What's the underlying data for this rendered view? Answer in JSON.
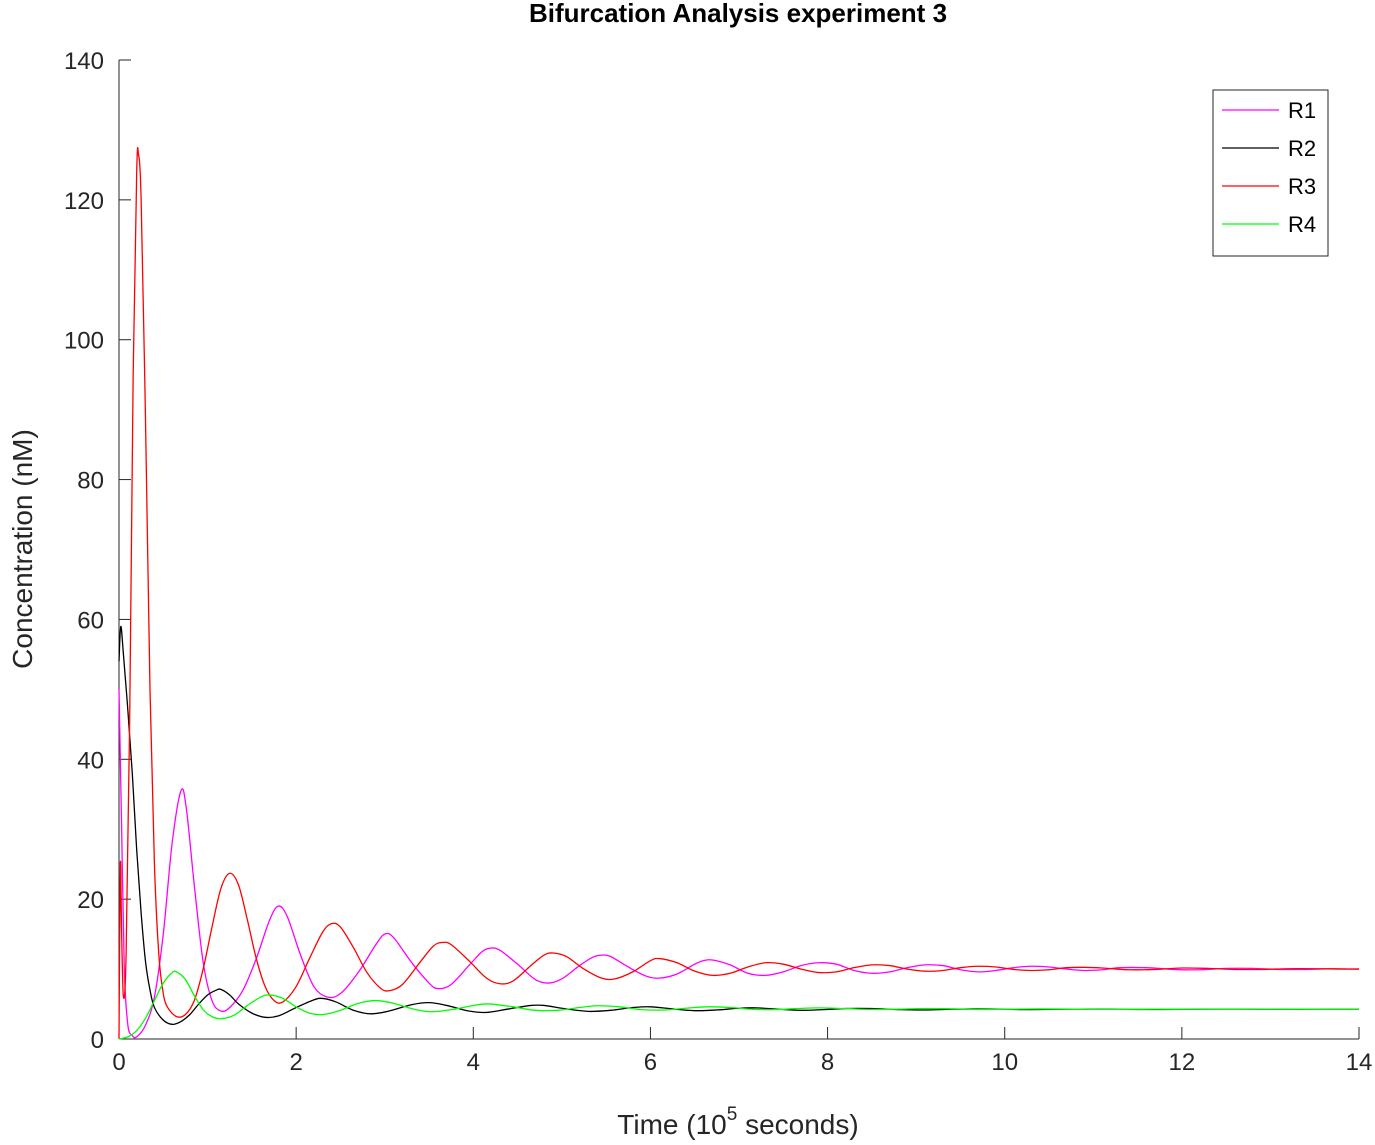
{
  "chart_data": {
    "type": "line",
    "title": "Bifurcation Analysis experiment 3",
    "xlabel": {
      "prefix": "Time (10",
      "exponent": "5",
      "suffix": " seconds)"
    },
    "ylabel": "Concentration (nM)",
    "xlim": [
      0,
      14
    ],
    "ylim": [
      0,
      140
    ],
    "xticks": [
      0,
      2,
      4,
      6,
      8,
      10,
      12,
      14
    ],
    "yticks": [
      0,
      20,
      40,
      60,
      80,
      100,
      120,
      140
    ],
    "xtick_labels": [
      "0",
      "2",
      "4",
      "6",
      "8",
      "10",
      "12",
      "14"
    ],
    "ytick_labels": [
      "0",
      "20",
      "40",
      "60",
      "80",
      "100",
      "120",
      "140"
    ],
    "legend_position": "top-right",
    "grid": false,
    "series": [
      {
        "name": "R1",
        "color": "#ff00ff",
        "points": [
          [
            0,
            50
          ],
          [
            0.03,
            30
          ],
          [
            0.06,
            10
          ],
          [
            0.1,
            2
          ],
          [
            0.15,
            0.5
          ],
          [
            0.2,
            0.3
          ],
          [
            0.3,
            2
          ],
          [
            0.4,
            6
          ],
          [
            0.5,
            15
          ],
          [
            0.6,
            28
          ],
          [
            0.7,
            35.5
          ],
          [
            0.76,
            33
          ],
          [
            0.85,
            22
          ],
          [
            0.95,
            11
          ],
          [
            1.05,
            5.5
          ],
          [
            1.15,
            4
          ],
          [
            1.25,
            4.5
          ],
          [
            1.4,
            7
          ],
          [
            1.55,
            11.5
          ],
          [
            1.7,
            17
          ],
          [
            1.8,
            19
          ],
          [
            1.9,
            17.5
          ],
          [
            2.05,
            12
          ],
          [
            2.2,
            7.5
          ],
          [
            2.35,
            6
          ],
          [
            2.5,
            6.5
          ],
          [
            2.7,
            9.5
          ],
          [
            2.9,
            13.5
          ],
          [
            3.0,
            15
          ],
          [
            3.1,
            14.5
          ],
          [
            3.3,
            11
          ],
          [
            3.5,
            8
          ],
          [
            3.6,
            7.2
          ],
          [
            3.75,
            7.8
          ],
          [
            3.95,
            10.5
          ],
          [
            4.1,
            12.5
          ],
          [
            4.2,
            13
          ],
          [
            4.3,
            12.7
          ],
          [
            4.5,
            10.7
          ],
          [
            4.7,
            8.5
          ],
          [
            4.85,
            8
          ],
          [
            5.0,
            8.6
          ],
          [
            5.2,
            10.5
          ],
          [
            5.35,
            11.7
          ],
          [
            5.45,
            12
          ],
          [
            5.55,
            11.8
          ],
          [
            5.75,
            10.3
          ],
          [
            5.95,
            9
          ],
          [
            6.1,
            8.7
          ],
          [
            6.3,
            9.3
          ],
          [
            6.5,
            10.7
          ],
          [
            6.6,
            11.2
          ],
          [
            6.7,
            11.3
          ],
          [
            6.9,
            10.6
          ],
          [
            7.1,
            9.4
          ],
          [
            7.3,
            9.1
          ],
          [
            7.5,
            9.6
          ],
          [
            7.7,
            10.5
          ],
          [
            7.9,
            10.9
          ],
          [
            8.1,
            10.7
          ],
          [
            8.3,
            9.8
          ],
          [
            8.5,
            9.4
          ],
          [
            8.7,
            9.6
          ],
          [
            8.9,
            10.2
          ],
          [
            9.1,
            10.6
          ],
          [
            9.3,
            10.5
          ],
          [
            9.5,
            9.9
          ],
          [
            9.7,
            9.6
          ],
          [
            9.9,
            9.8
          ],
          [
            10.1,
            10.2
          ],
          [
            10.3,
            10.4
          ],
          [
            10.5,
            10.3
          ],
          [
            10.7,
            10.0
          ],
          [
            10.9,
            9.8
          ],
          [
            11.1,
            9.9
          ],
          [
            11.3,
            10.2
          ],
          [
            11.6,
            10.2
          ],
          [
            11.9,
            9.95
          ],
          [
            12.2,
            9.9
          ],
          [
            12.5,
            10.1
          ],
          [
            12.8,
            10.1
          ],
          [
            13.1,
            9.95
          ],
          [
            13.4,
            9.95
          ],
          [
            13.7,
            10.05
          ],
          [
            14,
            10.0
          ]
        ]
      },
      {
        "name": "R2",
        "color": "#000000",
        "points": [
          [
            0,
            54
          ],
          [
            0.02,
            59
          ],
          [
            0.05,
            55
          ],
          [
            0.1,
            47
          ],
          [
            0.15,
            38
          ],
          [
            0.2,
            27
          ],
          [
            0.25,
            18
          ],
          [
            0.3,
            11
          ],
          [
            0.35,
            7
          ],
          [
            0.4,
            4.5
          ],
          [
            0.5,
            2.7
          ],
          [
            0.6,
            2.1
          ],
          [
            0.7,
            2.5
          ],
          [
            0.8,
            3.5
          ],
          [
            0.9,
            5
          ],
          [
            1.0,
            6.3
          ],
          [
            1.1,
            7
          ],
          [
            1.15,
            7.1
          ],
          [
            1.25,
            6.3
          ],
          [
            1.35,
            5
          ],
          [
            1.5,
            3.7
          ],
          [
            1.65,
            3.1
          ],
          [
            1.8,
            3.3
          ],
          [
            2.0,
            4.5
          ],
          [
            2.2,
            5.6
          ],
          [
            2.3,
            5.8
          ],
          [
            2.45,
            5.3
          ],
          [
            2.65,
            4.1
          ],
          [
            2.85,
            3.6
          ],
          [
            3.05,
            4.0
          ],
          [
            3.3,
            4.9
          ],
          [
            3.5,
            5.2
          ],
          [
            3.7,
            4.8
          ],
          [
            3.95,
            4.0
          ],
          [
            4.15,
            3.8
          ],
          [
            4.4,
            4.3
          ],
          [
            4.65,
            4.8
          ],
          [
            4.8,
            4.8
          ],
          [
            5.05,
            4.3
          ],
          [
            5.3,
            3.95
          ],
          [
            5.55,
            4.1
          ],
          [
            5.8,
            4.5
          ],
          [
            6.0,
            4.6
          ],
          [
            6.25,
            4.3
          ],
          [
            6.5,
            4.05
          ],
          [
            6.75,
            4.15
          ],
          [
            7.0,
            4.4
          ],
          [
            7.2,
            4.45
          ],
          [
            7.45,
            4.25
          ],
          [
            7.7,
            4.1
          ],
          [
            7.95,
            4.2
          ],
          [
            8.2,
            4.35
          ],
          [
            8.5,
            4.35
          ],
          [
            8.8,
            4.2
          ],
          [
            9.1,
            4.15
          ],
          [
            9.4,
            4.25
          ],
          [
            9.7,
            4.3
          ],
          [
            10.0,
            4.25
          ],
          [
            10.3,
            4.2
          ],
          [
            10.7,
            4.25
          ],
          [
            11.1,
            4.27
          ],
          [
            11.5,
            4.22
          ],
          [
            12.0,
            4.24
          ],
          [
            12.5,
            4.25
          ],
          [
            13.0,
            4.24
          ],
          [
            13.5,
            4.25
          ],
          [
            14,
            4.25
          ]
        ]
      },
      {
        "name": "R3",
        "color": "#ff0000",
        "points": [
          [
            0,
            0
          ],
          [
            0.015,
            25
          ],
          [
            0.03,
            15
          ],
          [
            0.05,
            6
          ],
          [
            0.08,
            12
          ],
          [
            0.12,
            45
          ],
          [
            0.16,
            95
          ],
          [
            0.2,
            124
          ],
          [
            0.22,
            126.5
          ],
          [
            0.25,
            120
          ],
          [
            0.3,
            88
          ],
          [
            0.35,
            50
          ],
          [
            0.4,
            25
          ],
          [
            0.45,
            12
          ],
          [
            0.5,
            6.5
          ],
          [
            0.55,
            4.5
          ],
          [
            0.65,
            3.2
          ],
          [
            0.75,
            3.5
          ],
          [
            0.85,
            5.5
          ],
          [
            0.95,
            10
          ],
          [
            1.05,
            16
          ],
          [
            1.15,
            21.5
          ],
          [
            1.25,
            23.7
          ],
          [
            1.35,
            22
          ],
          [
            1.45,
            17
          ],
          [
            1.55,
            11.5
          ],
          [
            1.65,
            7.5
          ],
          [
            1.75,
            5.5
          ],
          [
            1.85,
            5.3
          ],
          [
            2.0,
            7.5
          ],
          [
            2.15,
            11.5
          ],
          [
            2.3,
            15.3
          ],
          [
            2.4,
            16.5
          ],
          [
            2.5,
            16
          ],
          [
            2.65,
            13
          ],
          [
            2.8,
            9.5
          ],
          [
            2.95,
            7.3
          ],
          [
            3.05,
            6.9
          ],
          [
            3.2,
            7.8
          ],
          [
            3.4,
            11
          ],
          [
            3.55,
            13.3
          ],
          [
            3.65,
            13.8
          ],
          [
            3.75,
            13.5
          ],
          [
            3.95,
            11.2
          ],
          [
            4.15,
            8.7
          ],
          [
            4.3,
            7.9
          ],
          [
            4.45,
            8.3
          ],
          [
            4.65,
            10.5
          ],
          [
            4.8,
            12.0
          ],
          [
            4.9,
            12.3
          ],
          [
            5.05,
            11.8
          ],
          [
            5.25,
            10.0
          ],
          [
            5.45,
            8.7
          ],
          [
            5.6,
            8.6
          ],
          [
            5.8,
            9.6
          ],
          [
            6.0,
            11.2
          ],
          [
            6.1,
            11.5
          ],
          [
            6.3,
            10.9
          ],
          [
            6.5,
            9.7
          ],
          [
            6.7,
            9.1
          ],
          [
            6.9,
            9.4
          ],
          [
            7.1,
            10.3
          ],
          [
            7.3,
            10.9
          ],
          [
            7.5,
            10.7
          ],
          [
            7.7,
            10.0
          ],
          [
            7.9,
            9.5
          ],
          [
            8.1,
            9.6
          ],
          [
            8.3,
            10.2
          ],
          [
            8.5,
            10.6
          ],
          [
            8.7,
            10.5
          ],
          [
            8.9,
            10.0
          ],
          [
            9.1,
            9.7
          ],
          [
            9.3,
            9.8
          ],
          [
            9.5,
            10.2
          ],
          [
            9.7,
            10.4
          ],
          [
            9.9,
            10.3
          ],
          [
            10.1,
            9.95
          ],
          [
            10.3,
            9.8
          ],
          [
            10.5,
            9.9
          ],
          [
            10.7,
            10.2
          ],
          [
            10.9,
            10.25
          ],
          [
            11.1,
            10.15
          ],
          [
            11.4,
            9.9
          ],
          [
            11.7,
            9.95
          ],
          [
            12.0,
            10.15
          ],
          [
            12.3,
            10.1
          ],
          [
            12.6,
            9.95
          ],
          [
            12.9,
            9.95
          ],
          [
            13.2,
            10.05
          ],
          [
            13.5,
            10.05
          ],
          [
            13.8,
            10.0
          ],
          [
            14,
            10.0
          ]
        ]
      },
      {
        "name": "R4",
        "color": "#00ff00",
        "points": [
          [
            0,
            0
          ],
          [
            0.1,
            0.3
          ],
          [
            0.2,
            1.2
          ],
          [
            0.3,
            3
          ],
          [
            0.4,
            5.5
          ],
          [
            0.5,
            8
          ],
          [
            0.6,
            9.5
          ],
          [
            0.65,
            9.6
          ],
          [
            0.75,
            8.5
          ],
          [
            0.85,
            6.2
          ],
          [
            0.95,
            4.2
          ],
          [
            1.05,
            3.2
          ],
          [
            1.15,
            2.9
          ],
          [
            1.3,
            3.4
          ],
          [
            1.45,
            4.8
          ],
          [
            1.6,
            6.0
          ],
          [
            1.7,
            6.3
          ],
          [
            1.85,
            5.8
          ],
          [
            2.0,
            4.6
          ],
          [
            2.15,
            3.7
          ],
          [
            2.3,
            3.5
          ],
          [
            2.5,
            4.1
          ],
          [
            2.7,
            5.1
          ],
          [
            2.9,
            5.5
          ],
          [
            3.1,
            5.1
          ],
          [
            3.35,
            4.2
          ],
          [
            3.55,
            3.9
          ],
          [
            3.8,
            4.3
          ],
          [
            4.05,
            4.9
          ],
          [
            4.2,
            5.0
          ],
          [
            4.45,
            4.6
          ],
          [
            4.7,
            4.1
          ],
          [
            4.95,
            4.1
          ],
          [
            5.2,
            4.5
          ],
          [
            5.4,
            4.75
          ],
          [
            5.65,
            4.6
          ],
          [
            5.9,
            4.2
          ],
          [
            6.15,
            4.15
          ],
          [
            6.4,
            4.4
          ],
          [
            6.65,
            4.6
          ],
          [
            6.9,
            4.5
          ],
          [
            7.15,
            4.25
          ],
          [
            7.4,
            4.2
          ],
          [
            7.65,
            4.35
          ],
          [
            7.9,
            4.45
          ],
          [
            8.2,
            4.35
          ],
          [
            8.5,
            4.22
          ],
          [
            8.8,
            4.27
          ],
          [
            9.1,
            4.35
          ],
          [
            9.4,
            4.32
          ],
          [
            9.7,
            4.23
          ],
          [
            10.0,
            4.25
          ],
          [
            10.4,
            4.3
          ],
          [
            10.8,
            4.26
          ],
          [
            11.2,
            4.24
          ],
          [
            11.7,
            4.27
          ],
          [
            12.2,
            4.25
          ],
          [
            12.8,
            4.25
          ],
          [
            13.4,
            4.26
          ],
          [
            14,
            4.25
          ]
        ]
      }
    ]
  }
}
